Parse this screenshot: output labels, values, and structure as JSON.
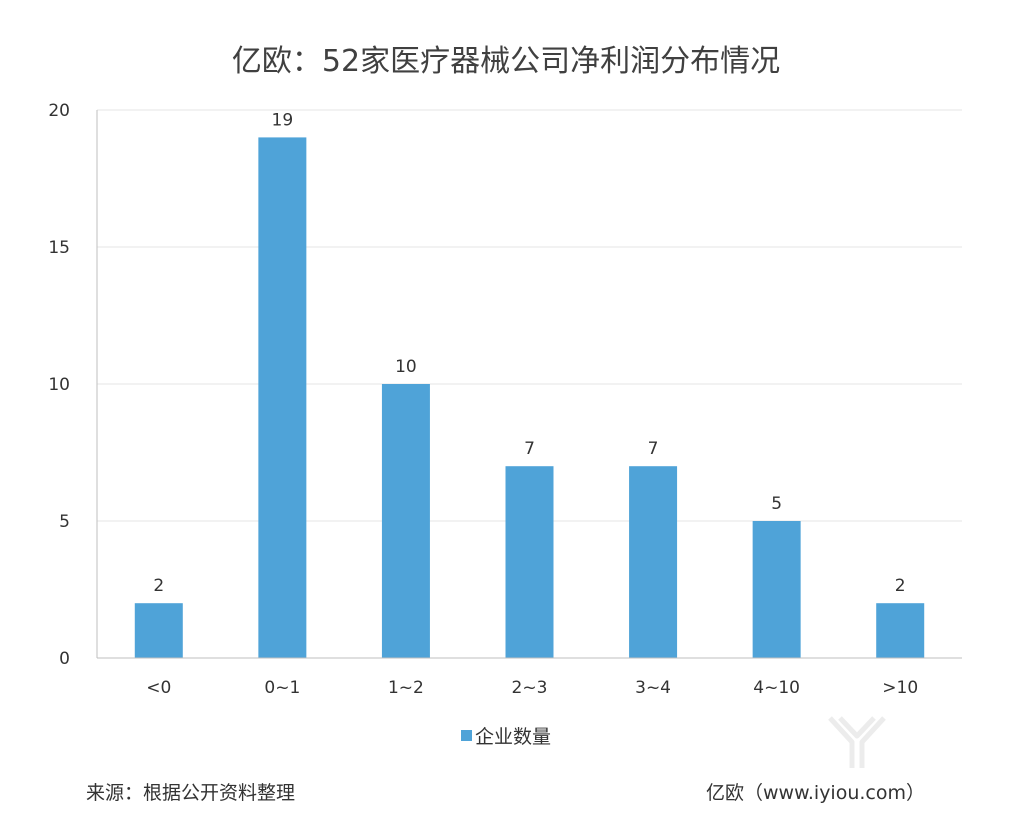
{
  "chart_data": {
    "type": "bar",
    "title": "亿欧：52家医疗器械公司净利润分布情况",
    "categories": [
      "<0",
      "0~1",
      "1~2",
      "2~3",
      "3~4",
      "4~10",
      ">10"
    ],
    "series": [
      {
        "name": "企业数量",
        "values": [
          2,
          19,
          10,
          7,
          7,
          5,
          2
        ]
      }
    ],
    "ylim": [
      0,
      20
    ],
    "yticks": [
      0,
      5,
      10,
      15,
      20
    ],
    "xlabel": "",
    "ylabel": "",
    "grid": true,
    "legend": "bottom-center",
    "bar_color": "#4fa3d8"
  },
  "footer": {
    "source": "来源：根据公开资料整理",
    "credit": "亿欧（www.iyiou.com）"
  }
}
